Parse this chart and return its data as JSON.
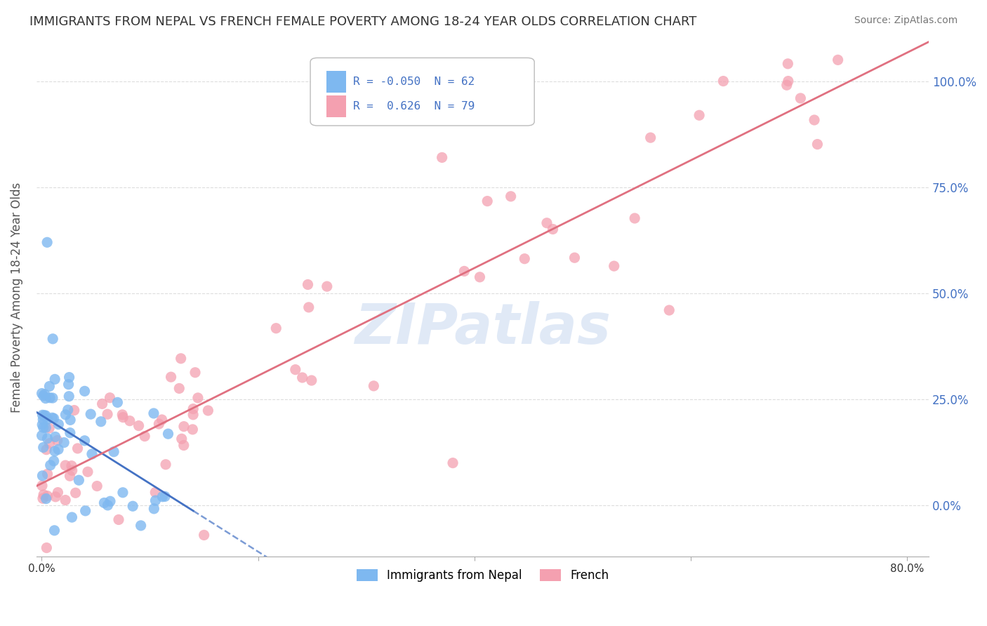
{
  "title": "IMMIGRANTS FROM NEPAL VS FRENCH FEMALE POVERTY AMONG 18-24 YEAR OLDS CORRELATION CHART",
  "source": "Source: ZipAtlas.com",
  "ylabel": "Female Poverty Among 18-24 Year Olds",
  "yticks": [
    0.0,
    0.25,
    0.5,
    0.75,
    1.0
  ],
  "ytick_labels": [
    "0.0%",
    "25.0%",
    "50.0%",
    "75.0%",
    "100.0%"
  ],
  "xlim": [
    -0.005,
    0.82
  ],
  "ylim": [
    -0.12,
    1.1
  ],
  "xticks": [
    0.0,
    0.2,
    0.4,
    0.6,
    0.8
  ],
  "xtick_labels": [
    "0.0%",
    "",
    "",
    "",
    "80.0%"
  ],
  "series1_label": "Immigrants from Nepal",
  "series1_color": "#7EB8F0",
  "series1_edge": "#5A9AD0",
  "series1_R": -0.05,
  "series1_N": 62,
  "series2_label": "French",
  "series2_color": "#F4A0B0",
  "series2_edge": "#D07888",
  "series2_R": 0.626,
  "series2_N": 79,
  "trend1_color": "#4472C4",
  "trend2_color": "#E07080",
  "legend_text_color": "#4472C4",
  "watermark": "ZIPatlas",
  "watermark_color": "#C8D8F0",
  "background_color": "#FFFFFF",
  "grid_color": "#DDDDDD",
  "title_fontsize": 13,
  "axis_label_color": "#4472C4",
  "seed": 99
}
